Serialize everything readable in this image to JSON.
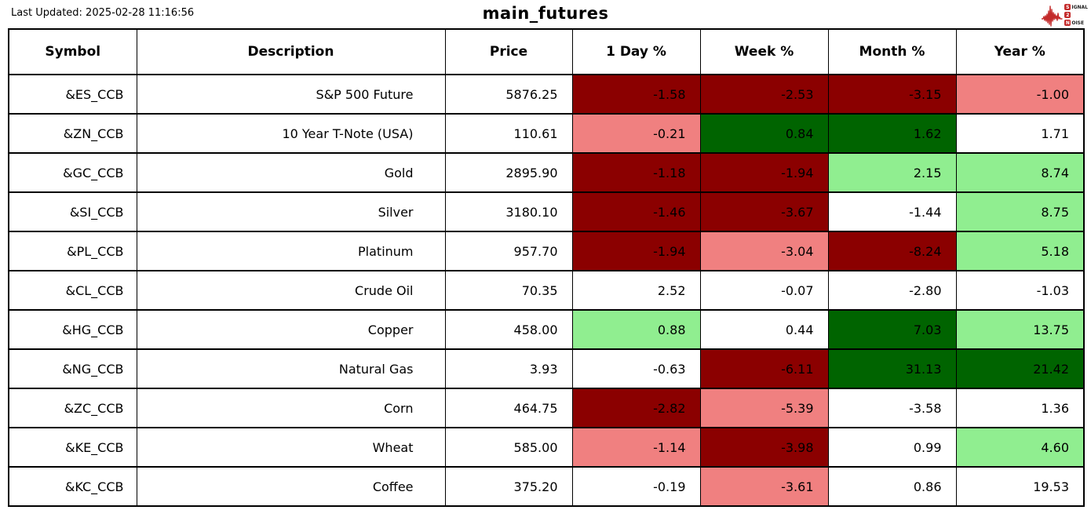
{
  "page": {
    "last_updated": "Last Updated: 2025-02-28 11:16:56"
  },
  "logo": {
    "signal_badge": "S",
    "signal_rest": "IGNAL",
    "middle_badge": "2",
    "noise_badge": "N",
    "noise_rest": "OISE",
    "accent_color": "#c32a2a"
  },
  "chart_data": {
    "type": "table",
    "title": "main_futures",
    "columns": [
      "Symbol",
      "Description",
      "Price",
      "1 Day %",
      "Week %",
      "Month %",
      "Year %"
    ],
    "color_map": {
      "darkred": "#8B0000",
      "lightcoral": "#F08080",
      "white": "#FFFFFF",
      "lightgreen": "#90EE90",
      "darkgreen": "#006400"
    },
    "rows": [
      {
        "symbol": "&ES_CCB",
        "description": "S&P 500 Future",
        "price": "5876.25",
        "pct": [
          {
            "value": "-1.58",
            "color": "darkred"
          },
          {
            "value": "-2.53",
            "color": "darkred"
          },
          {
            "value": "-3.15",
            "color": "darkred"
          },
          {
            "value": "-1.00",
            "color": "lightcoral"
          }
        ]
      },
      {
        "symbol": "&ZN_CCB",
        "description": "10 Year T-Note (USA)",
        "price": "110.61",
        "pct": [
          {
            "value": "-0.21",
            "color": "lightcoral"
          },
          {
            "value": "0.84",
            "color": "darkgreen"
          },
          {
            "value": "1.62",
            "color": "darkgreen"
          },
          {
            "value": "1.71",
            "color": "white"
          }
        ]
      },
      {
        "symbol": "&GC_CCB",
        "description": "Gold",
        "price": "2895.90",
        "pct": [
          {
            "value": "-1.18",
            "color": "darkred"
          },
          {
            "value": "-1.94",
            "color": "darkred"
          },
          {
            "value": "2.15",
            "color": "lightgreen"
          },
          {
            "value": "8.74",
            "color": "lightgreen"
          }
        ]
      },
      {
        "symbol": "&SI_CCB",
        "description": "Silver",
        "price": "3180.10",
        "pct": [
          {
            "value": "-1.46",
            "color": "darkred"
          },
          {
            "value": "-3.67",
            "color": "darkred"
          },
          {
            "value": "-1.44",
            "color": "white"
          },
          {
            "value": "8.75",
            "color": "lightgreen"
          }
        ]
      },
      {
        "symbol": "&PL_CCB",
        "description": "Platinum",
        "price": "957.70",
        "pct": [
          {
            "value": "-1.94",
            "color": "darkred"
          },
          {
            "value": "-3.04",
            "color": "lightcoral"
          },
          {
            "value": "-8.24",
            "color": "darkred"
          },
          {
            "value": "5.18",
            "color": "lightgreen"
          }
        ]
      },
      {
        "symbol": "&CL_CCB",
        "description": "Crude Oil",
        "price": "70.35",
        "pct": [
          {
            "value": "2.52",
            "color": "white"
          },
          {
            "value": "-0.07",
            "color": "white"
          },
          {
            "value": "-2.80",
            "color": "white"
          },
          {
            "value": "-1.03",
            "color": "white"
          }
        ]
      },
      {
        "symbol": "&HG_CCB",
        "description": "Copper",
        "price": "458.00",
        "pct": [
          {
            "value": "0.88",
            "color": "lightgreen"
          },
          {
            "value": "0.44",
            "color": "white"
          },
          {
            "value": "7.03",
            "color": "darkgreen"
          },
          {
            "value": "13.75",
            "color": "lightgreen"
          }
        ]
      },
      {
        "symbol": "&NG_CCB",
        "description": "Natural Gas",
        "price": "3.93",
        "pct": [
          {
            "value": "-0.63",
            "color": "white"
          },
          {
            "value": "-6.11",
            "color": "darkred"
          },
          {
            "value": "31.13",
            "color": "darkgreen"
          },
          {
            "value": "21.42",
            "color": "darkgreen"
          }
        ]
      },
      {
        "symbol": "&ZC_CCB",
        "description": "Corn",
        "price": "464.75",
        "pct": [
          {
            "value": "-2.82",
            "color": "darkred"
          },
          {
            "value": "-5.39",
            "color": "lightcoral"
          },
          {
            "value": "-3.58",
            "color": "white"
          },
          {
            "value": "1.36",
            "color": "white"
          }
        ]
      },
      {
        "symbol": "&KE_CCB",
        "description": "Wheat",
        "price": "585.00",
        "pct": [
          {
            "value": "-1.14",
            "color": "lightcoral"
          },
          {
            "value": "-3.98",
            "color": "darkred"
          },
          {
            "value": "0.99",
            "color": "white"
          },
          {
            "value": "4.60",
            "color": "lightgreen"
          }
        ]
      },
      {
        "symbol": "&KC_CCB",
        "description": "Coffee",
        "price": "375.20",
        "pct": [
          {
            "value": "-0.19",
            "color": "white"
          },
          {
            "value": "-3.61",
            "color": "lightcoral"
          },
          {
            "value": "0.86",
            "color": "white"
          },
          {
            "value": "19.53",
            "color": "white"
          }
        ]
      }
    ]
  }
}
